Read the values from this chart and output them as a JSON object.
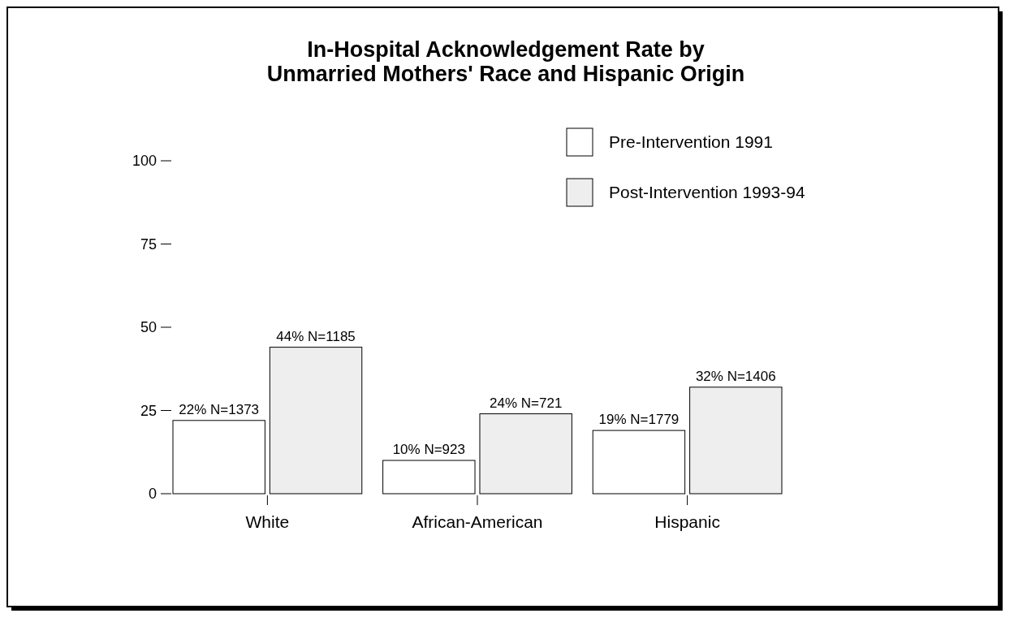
{
  "chart_data": {
    "type": "bar",
    "title": "In-Hospital Acknowledgement Rate by\nUnmarried Mothers' Race and Hispanic Origin",
    "categories": [
      "White",
      "African-American",
      "Hispanic"
    ],
    "series": [
      {
        "name": "Pre-Intervention 1991",
        "color": "#ffffff",
        "values": [
          22,
          10,
          19
        ],
        "value_labels": [
          "22% N=1373",
          "10% N=923",
          "19% N=1779"
        ]
      },
      {
        "name": "Post-Intervention 1993-94",
        "color": "#eeeeee",
        "values": [
          44,
          24,
          32
        ],
        "value_labels": [
          "44% N=1185",
          "24% N=721",
          "32% N=1406"
        ]
      }
    ],
    "ylim": [
      0,
      100
    ],
    "yticks": [
      0,
      25,
      50,
      75,
      100
    ],
    "legend": "top right"
  }
}
